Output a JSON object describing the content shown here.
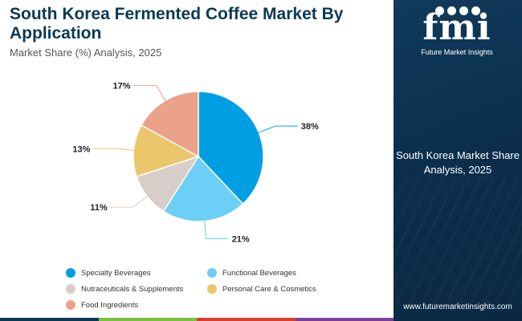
{
  "header": {
    "title": "South Korea Fermented Coffee Market By Application",
    "subtitle": "Market Share (%) Analysis, 2025"
  },
  "chart_data": {
    "type": "pie",
    "title": "South Korea Fermented Coffee Market By Application",
    "subtitle": "Market Share (%) Analysis, 2025",
    "unit": "%",
    "start_angle_deg": 0,
    "direction": "clockwise",
    "legend_position": "bottom",
    "slices": [
      {
        "label": "Specialty Beverages",
        "value": 38,
        "value_label": "38%",
        "color": "#009fe3"
      },
      {
        "label": "Functional Beverages",
        "value": 21,
        "value_label": "21%",
        "color": "#6ccff6"
      },
      {
        "label": "Nutraceuticals & Supplements",
        "value": 11,
        "value_label": "11%",
        "color": "#d9cdc7"
      },
      {
        "label": "Personal Care & Cosmetics",
        "value": 13,
        "value_label": "13%",
        "color": "#ecc66a"
      },
      {
        "label": "Food Ingredients",
        "value": 17,
        "value_label": "17%",
        "color": "#eba18a"
      }
    ]
  },
  "sidebar": {
    "logo_letters": "fmi",
    "logo_subtitle": "Future Market Insights",
    "caption": "South Korea Market Share Analysis, 2025",
    "website": "www.futuremarketinsights.com"
  },
  "bottom_bar_colors": [
    "#0b3954",
    "#7ac142",
    "#d9402b",
    "#7b3f98"
  ]
}
